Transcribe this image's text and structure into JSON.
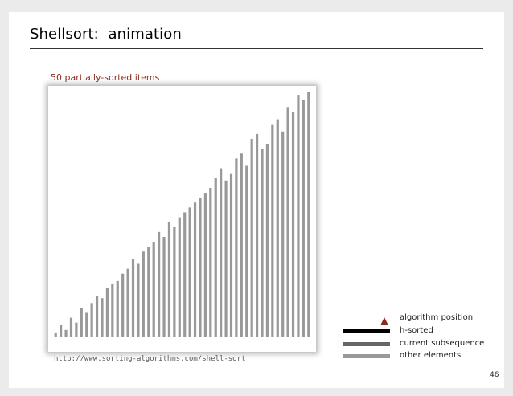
{
  "slide": {
    "title": "Shellsort:  animation",
    "subtitle": "50 partially-sorted items",
    "source_url": "http://www.sorting-algorithms.com/shell-sort",
    "page_number": "46"
  },
  "legend": {
    "items": [
      {
        "label": "algorithm position",
        "symbol": "triangle",
        "color": "#8a2b1b"
      },
      {
        "label": "h-sorted",
        "symbol": "bar",
        "color": "#000000"
      },
      {
        "label": "current subsequence",
        "symbol": "bar",
        "color": "#666666"
      },
      {
        "label": "other elements",
        "symbol": "bar",
        "color": "#999999"
      }
    ]
  },
  "chart_data": {
    "type": "bar",
    "item_count": 50,
    "values": [
      2,
      5,
      3,
      8,
      6,
      12,
      10,
      14,
      17,
      16,
      20,
      22,
      23,
      26,
      28,
      32,
      30,
      35,
      37,
      39,
      43,
      41,
      47,
      45,
      49,
      51,
      53,
      55,
      57,
      59,
      61,
      65,
      69,
      64,
      67,
      73,
      75,
      70,
      81,
      83,
      77,
      79,
      87,
      89,
      84,
      94,
      92,
      99,
      97,
      100
    ],
    "ylim": [
      0,
      100
    ],
    "bar_color": "#999999"
  }
}
